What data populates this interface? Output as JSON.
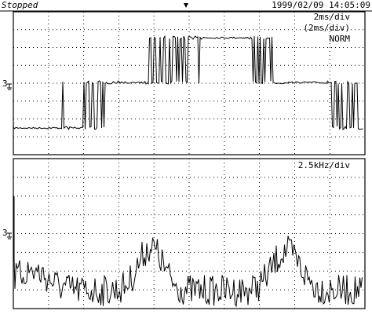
{
  "status": "Stopped",
  "timestamp": "1999/02/09 14:05:09",
  "upper_panel": {
    "labels": [
      "2ms/div",
      "(2ms/div)",
      "NORM"
    ],
    "channel": "3"
  },
  "lower_panel": {
    "label": "2.5kHz/div",
    "channel": "3"
  }
}
